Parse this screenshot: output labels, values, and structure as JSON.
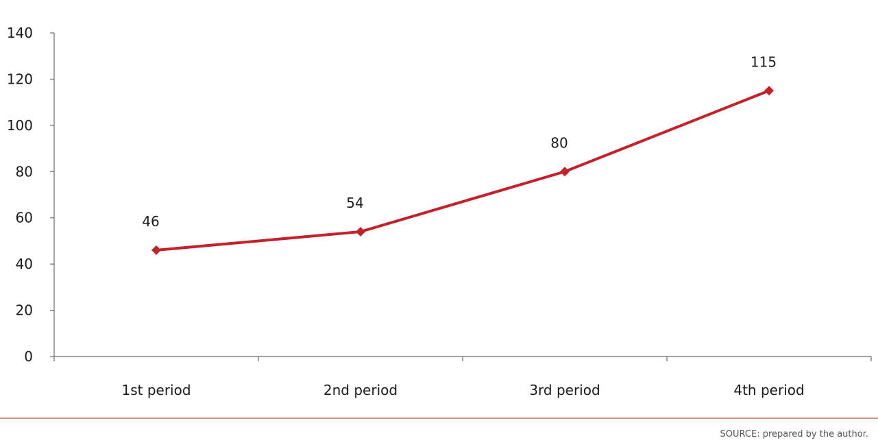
{
  "chart_data": {
    "type": "line",
    "categories": [
      "1st period",
      "2nd period",
      "3rd period",
      "4th period"
    ],
    "series": [
      {
        "values": [
          46,
          54,
          80,
          115
        ]
      }
    ],
    "data_labels": [
      "46",
      "54",
      "80",
      "115"
    ],
    "ylim": [
      0,
      140
    ],
    "yticks": [
      "0",
      "20",
      "40",
      "60",
      "80",
      "100",
      "120",
      "140"
    ],
    "grid": false,
    "legend": "none",
    "marker": "diamond",
    "line_color": "#c4222a",
    "axis_color": "#6b6b6b"
  },
  "source_note": "SOURCE: prepared by the author.",
  "divider_color": "#f08a80"
}
